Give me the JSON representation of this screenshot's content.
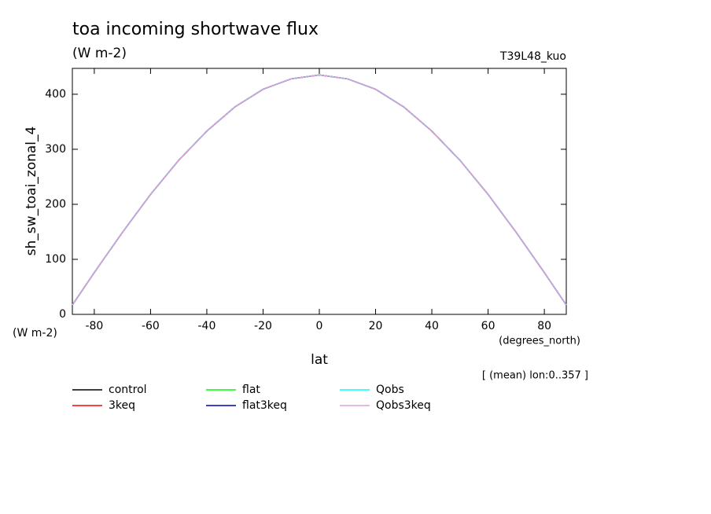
{
  "chart_data": {
    "type": "line",
    "title": "toa incoming shortwave flux",
    "subtitle": "(W m-2)",
    "annotation": "T39L48_kuo",
    "y_label": "sh_sw_toai_zonal_4",
    "y_units": "(W m-2)",
    "x_label": "lat",
    "x_units": "(degrees_north)",
    "note": "[ (mean) lon:0..357 ]",
    "x": [
      -87.8,
      -80,
      -70,
      -60,
      -50,
      -40,
      -30,
      -20,
      -10,
      0,
      10,
      20,
      30,
      40,
      50,
      60,
      70,
      80,
      87.8
    ],
    "series": [
      {
        "name": "control",
        "color": "#000000",
        "values": [
          17,
          76,
          149,
          218,
          280,
          333,
          377,
          409,
          428,
          435,
          428,
          409,
          377,
          333,
          280,
          218,
          149,
          76,
          17
        ]
      },
      {
        "name": "3keq",
        "color": "#ff0000",
        "values": [
          17,
          76,
          149,
          218,
          280,
          333,
          377,
          409,
          428,
          435,
          428,
          409,
          377,
          333,
          280,
          218,
          149,
          76,
          17
        ]
      },
      {
        "name": "flat",
        "color": "#00ff00",
        "values": [
          17,
          76,
          149,
          218,
          280,
          333,
          377,
          409,
          428,
          435,
          428,
          409,
          377,
          333,
          280,
          218,
          149,
          76,
          17
        ]
      },
      {
        "name": "flat3keq",
        "color": "#0000b0",
        "values": [
          17,
          76,
          149,
          218,
          280,
          333,
          377,
          409,
          428,
          435,
          428,
          409,
          377,
          333,
          280,
          218,
          149,
          76,
          17
        ]
      },
      {
        "name": "Qobs",
        "color": "#00ffff",
        "values": [
          17,
          76,
          149,
          218,
          280,
          333,
          377,
          409,
          428,
          435,
          428,
          409,
          377,
          333,
          280,
          218,
          149,
          76,
          17
        ]
      },
      {
        "name": "Qobs3keq",
        "color": "#dda0dd",
        "values": [
          17,
          76,
          149,
          218,
          280,
          333,
          377,
          409,
          428,
          435,
          428,
          409,
          377,
          333,
          280,
          218,
          149,
          76,
          17
        ]
      }
    ],
    "xlim": [
      -87.8,
      87.8
    ],
    "xticks": [
      -80,
      -60,
      -40,
      -20,
      0,
      20,
      40,
      60,
      80
    ],
    "ylim": [
      0,
      447
    ],
    "yticks": [
      0,
      100,
      200,
      300,
      400
    ]
  }
}
